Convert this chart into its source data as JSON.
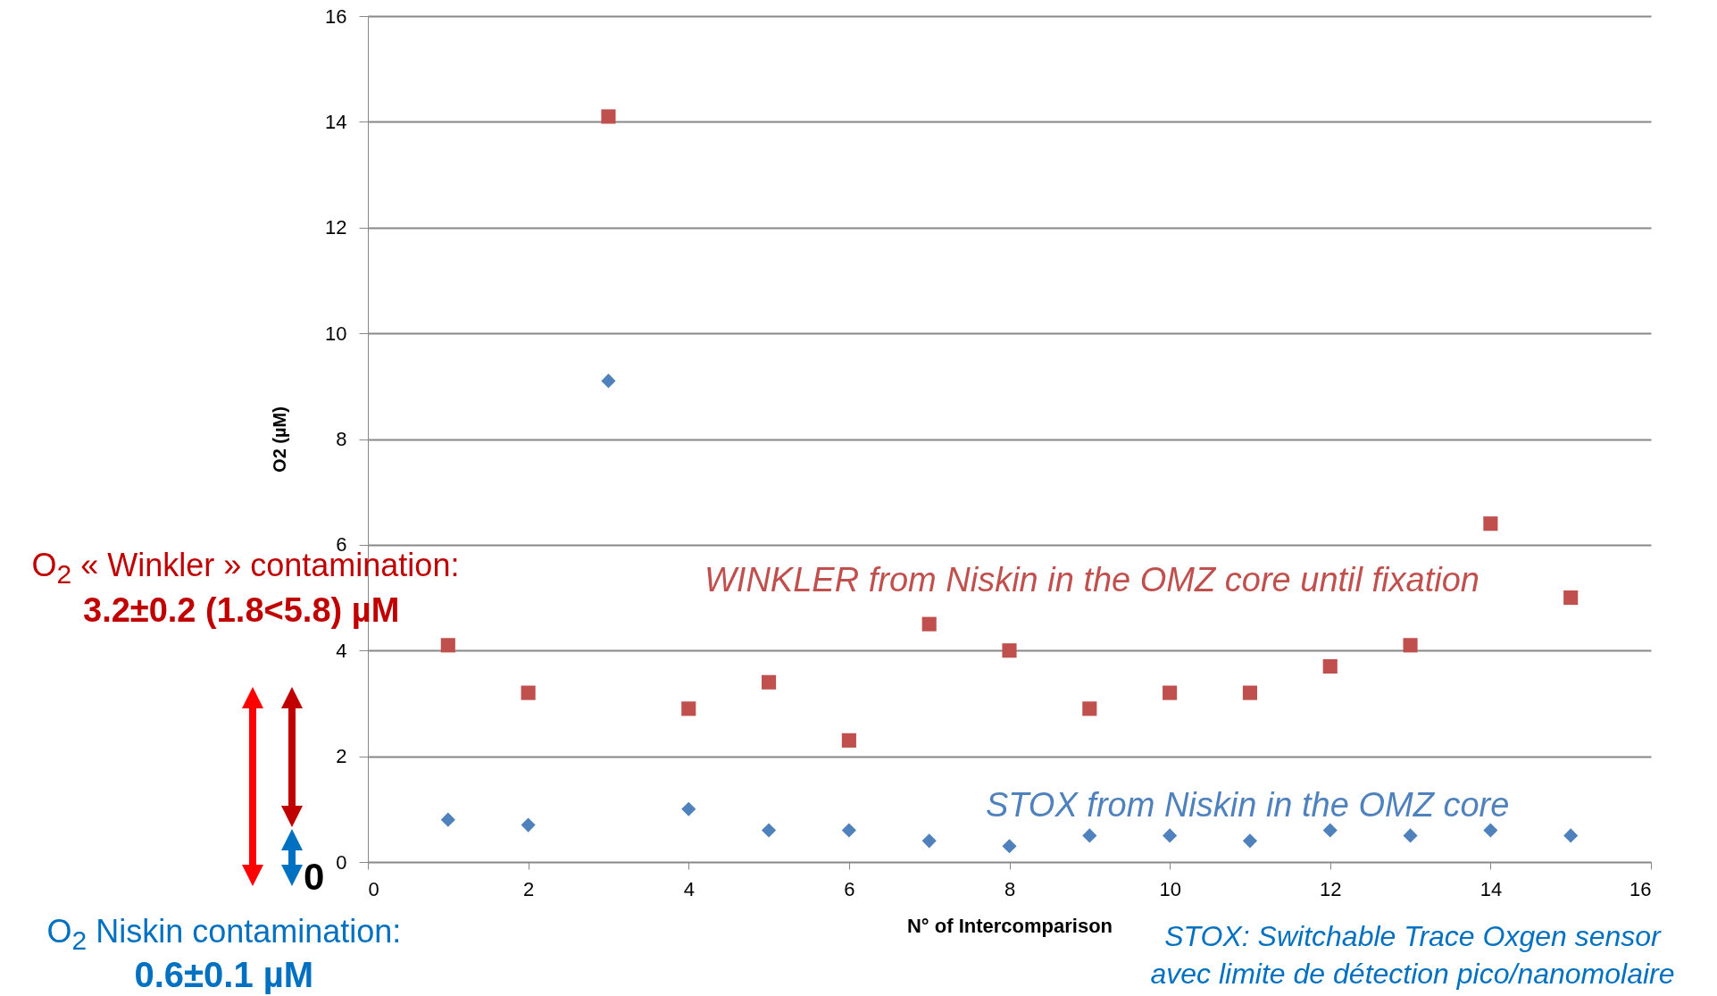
{
  "chart_data": {
    "type": "scatter",
    "xlabel": "N° of Intercomparison",
    "ylabel": "O2 (µM)",
    "x": [
      1,
      2,
      3,
      4,
      5,
      6,
      7,
      8,
      9,
      10,
      11,
      12,
      13,
      14,
      15
    ],
    "series": [
      {
        "name": "WINKLER from Niskin in the OMZ core until fixation",
        "color": "#c0504d",
        "marker": "square",
        "values": [
          4.1,
          3.2,
          14.1,
          2.9,
          3.4,
          2.3,
          4.5,
          4.0,
          2.9,
          3.2,
          3.2,
          3.7,
          4.1,
          6.4,
          5.0
        ]
      },
      {
        "name": "STOX from Niskin in the OMZ core",
        "color": "#4f81bd",
        "marker": "diamond",
        "values": [
          0.8,
          0.7,
          9.1,
          1.0,
          0.6,
          0.6,
          0.4,
          0.3,
          0.5,
          0.5,
          0.4,
          0.6,
          0.5,
          0.6,
          0.5
        ]
      }
    ],
    "xlim": [
      0,
      16
    ],
    "xticks": [
      0,
      2,
      4,
      6,
      8,
      10,
      12,
      14,
      16
    ],
    "ylim": [
      0,
      16
    ],
    "yticks": [
      0,
      2,
      4,
      6,
      8,
      10,
      12,
      14,
      16
    ],
    "grid": "y",
    "annotations": [
      "O$_{2}$ « Winkler » contamination:",
      "3.2±0.2 (1.8<5.8) µM",
      "0",
      "O$_{2}$ Niskin contamination:",
      "0.6±0.1 µM",
      "STOX: Switchable Trace Oxgen sensor avec limite de détection pico/nanomolaire"
    ]
  }
}
